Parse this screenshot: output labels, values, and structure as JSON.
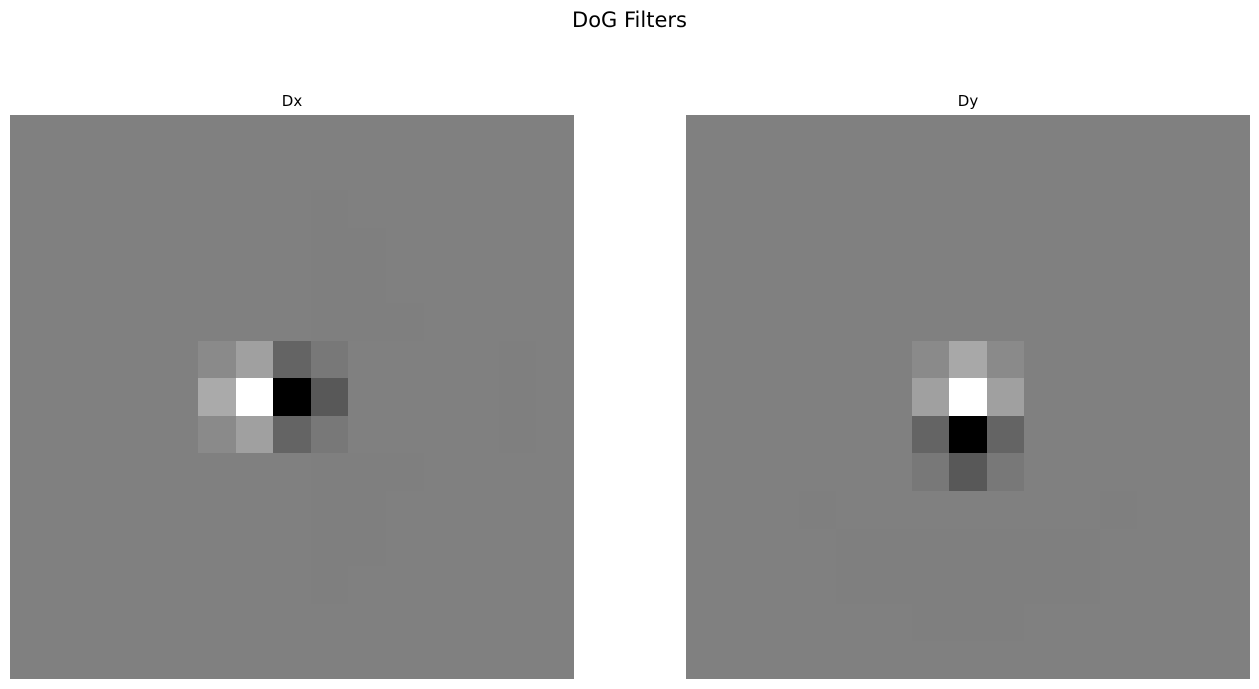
{
  "figure": {
    "title": "DoG Filters"
  },
  "colors": {
    "background": "#ffffff",
    "neutral": "#808080"
  },
  "chart_data": [
    {
      "type": "heatmap",
      "title": "Dx",
      "colormap": "gray",
      "axes": "off",
      "neutral_value": 128,
      "rows": 15,
      "cols": 15,
      "values": [
        [
          128,
          128,
          128,
          128,
          128,
          128,
          128,
          128,
          128,
          128,
          128,
          128,
          128,
          128,
          128
        ],
        [
          128,
          128,
          128,
          128,
          128,
          128,
          128,
          128,
          128,
          128,
          128,
          128,
          128,
          128,
          128
        ],
        [
          128,
          128,
          128,
          128,
          128,
          128,
          128,
          128,
          127,
          128,
          128,
          128,
          128,
          128,
          128
        ],
        [
          128,
          128,
          128,
          128,
          128,
          128,
          128,
          128,
          127,
          127,
          128,
          128,
          128,
          128,
          128
        ],
        [
          128,
          128,
          128,
          128,
          128,
          128,
          128,
          128,
          127,
          127,
          128,
          128,
          128,
          128,
          128
        ],
        [
          128,
          128,
          128,
          128,
          128,
          128,
          128,
          128,
          127,
          127,
          127,
          128,
          128,
          128,
          128
        ],
        [
          128,
          128,
          128,
          128,
          128,
          138,
          160,
          100,
          120,
          128,
          128,
          128,
          128,
          127,
          128
        ],
        [
          128,
          128,
          128,
          128,
          128,
          170,
          255,
          0,
          88,
          128,
          128,
          128,
          128,
          127,
          128
        ],
        [
          128,
          128,
          128,
          128,
          128,
          138,
          160,
          100,
          120,
          128,
          128,
          128,
          128,
          127,
          128
        ],
        [
          128,
          128,
          128,
          128,
          128,
          128,
          128,
          128,
          127,
          127,
          127,
          128,
          128,
          128,
          128
        ],
        [
          128,
          128,
          128,
          128,
          128,
          128,
          128,
          128,
          127,
          127,
          128,
          128,
          128,
          128,
          128
        ],
        [
          128,
          128,
          128,
          128,
          128,
          128,
          128,
          128,
          127,
          127,
          128,
          128,
          128,
          128,
          128
        ],
        [
          128,
          128,
          128,
          128,
          128,
          128,
          128,
          128,
          127,
          128,
          128,
          128,
          128,
          128,
          128
        ],
        [
          128,
          128,
          128,
          128,
          128,
          128,
          128,
          128,
          128,
          128,
          128,
          128,
          128,
          128,
          128
        ],
        [
          128,
          128,
          128,
          128,
          128,
          128,
          128,
          128,
          128,
          128,
          128,
          128,
          128,
          128,
          128
        ]
      ]
    },
    {
      "type": "heatmap",
      "title": "Dy",
      "colormap": "gray",
      "axes": "off",
      "neutral_value": 128,
      "rows": 15,
      "cols": 15,
      "values": [
        [
          128,
          128,
          128,
          128,
          128,
          128,
          128,
          128,
          128,
          128,
          128,
          128,
          128,
          128,
          128
        ],
        [
          128,
          128,
          128,
          128,
          128,
          128,
          128,
          128,
          128,
          128,
          128,
          128,
          128,
          128,
          128
        ],
        [
          128,
          128,
          128,
          128,
          128,
          128,
          128,
          128,
          128,
          128,
          128,
          128,
          128,
          128,
          128
        ],
        [
          128,
          128,
          128,
          128,
          128,
          128,
          128,
          128,
          128,
          128,
          128,
          128,
          128,
          128,
          128
        ],
        [
          128,
          128,
          128,
          128,
          128,
          128,
          128,
          128,
          128,
          128,
          128,
          128,
          128,
          128,
          128
        ],
        [
          128,
          128,
          128,
          128,
          128,
          128,
          128,
          128,
          128,
          128,
          128,
          128,
          128,
          128,
          128
        ],
        [
          128,
          128,
          128,
          128,
          128,
          128,
          138,
          168,
          138,
          128,
          128,
          128,
          128,
          128,
          128
        ],
        [
          128,
          128,
          128,
          128,
          128,
          128,
          160,
          255,
          160,
          128,
          128,
          128,
          128,
          128,
          128
        ],
        [
          128,
          128,
          128,
          128,
          128,
          128,
          100,
          0,
          100,
          128,
          128,
          128,
          128,
          128,
          128
        ],
        [
          128,
          128,
          128,
          128,
          128,
          128,
          120,
          88,
          120,
          128,
          128,
          128,
          128,
          128,
          128
        ],
        [
          128,
          128,
          128,
          127,
          128,
          128,
          128,
          128,
          128,
          128,
          128,
          127,
          128,
          128,
          128
        ],
        [
          128,
          128,
          128,
          128,
          127,
          127,
          127,
          127,
          127,
          127,
          127,
          128,
          128,
          128,
          128
        ],
        [
          128,
          128,
          128,
          128,
          127,
          127,
          127,
          127,
          127,
          127,
          127,
          128,
          128,
          128,
          128
        ],
        [
          128,
          128,
          128,
          128,
          128,
          128,
          127,
          127,
          127,
          128,
          128,
          128,
          128,
          128,
          128
        ],
        [
          128,
          128,
          128,
          128,
          128,
          128,
          128,
          128,
          128,
          128,
          128,
          128,
          128,
          128,
          128
        ]
      ]
    }
  ]
}
